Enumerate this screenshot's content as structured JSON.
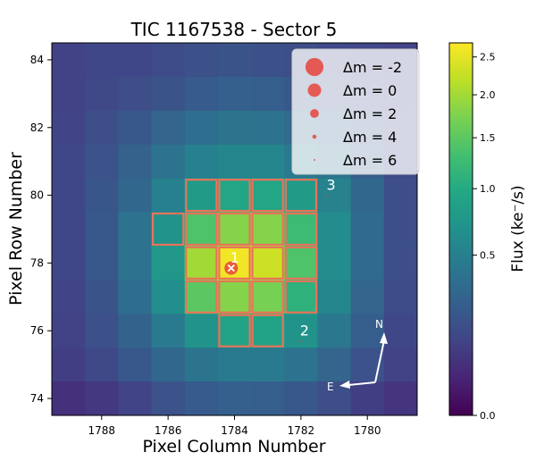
{
  "chart_data": {
    "type": "heatmap",
    "title": "TIC 1167538 - Sector 5",
    "xlabel": "Pixel Column Number",
    "ylabel": "Pixel Row Number",
    "xlim": [
      1789.5,
      1778.5
    ],
    "ylim": [
      73.5,
      84.5
    ],
    "x_ticks": [
      1788,
      1786,
      1784,
      1782,
      1780
    ],
    "y_ticks": [
      74,
      76,
      78,
      80,
      82,
      84
    ],
    "pixel_columns": [
      1789,
      1788,
      1787,
      1786,
      1785,
      1784,
      1783,
      1782,
      1781,
      1780,
      1779
    ],
    "pixel_rows": [
      84,
      83,
      82,
      81,
      80,
      79,
      78,
      77,
      76,
      75,
      74
    ],
    "flux_grid": [
      [
        0.1,
        0.12,
        0.12,
        0.14,
        0.16,
        0.18,
        0.16,
        0.15,
        0.13,
        0.12,
        0.11
      ],
      [
        0.1,
        0.13,
        0.15,
        0.18,
        0.22,
        0.25,
        0.24,
        0.2,
        0.17,
        0.14,
        0.12
      ],
      [
        0.11,
        0.15,
        0.2,
        0.28,
        0.35,
        0.4,
        0.38,
        0.32,
        0.25,
        0.18,
        0.13
      ],
      [
        0.12,
        0.17,
        0.26,
        0.38,
        0.5,
        0.55,
        0.55,
        0.45,
        0.4,
        0.24,
        0.14
      ],
      [
        0.12,
        0.19,
        0.3,
        0.5,
        0.8,
        0.95,
        0.95,
        0.8,
        0.52,
        0.3,
        0.15
      ],
      [
        0.12,
        0.2,
        0.38,
        0.7,
        1.4,
        1.8,
        1.8,
        1.25,
        0.62,
        0.32,
        0.15
      ],
      [
        0.12,
        0.2,
        0.38,
        0.75,
        2.0,
        2.6,
        2.3,
        1.4,
        0.62,
        0.32,
        0.15
      ],
      [
        0.11,
        0.18,
        0.34,
        0.65,
        1.5,
        1.8,
        1.7,
        1.1,
        0.55,
        0.28,
        0.14
      ],
      [
        0.1,
        0.16,
        0.27,
        0.45,
        0.7,
        0.9,
        0.9,
        0.7,
        0.42,
        0.24,
        0.12
      ],
      [
        0.09,
        0.13,
        0.2,
        0.3,
        0.4,
        0.45,
        0.45,
        0.38,
        0.28,
        0.17,
        0.1
      ],
      [
        0.05,
        0.07,
        0.11,
        0.17,
        0.22,
        0.25,
        0.24,
        0.2,
        0.15,
        0.09,
        0.06
      ]
    ],
    "aperture_pixels": [
      [
        1785,
        80
      ],
      [
        1784,
        80
      ],
      [
        1783,
        80
      ],
      [
        1782,
        80
      ],
      [
        1786,
        79
      ],
      [
        1785,
        79
      ],
      [
        1784,
        79
      ],
      [
        1783,
        79
      ],
      [
        1782,
        79
      ],
      [
        1785,
        78
      ],
      [
        1784,
        78
      ],
      [
        1783,
        78
      ],
      [
        1782,
        78
      ],
      [
        1785,
        77
      ],
      [
        1784,
        77
      ],
      [
        1783,
        77
      ],
      [
        1782,
        77
      ],
      [
        1784,
        76
      ],
      [
        1783,
        76
      ]
    ],
    "stars": [
      {
        "label": "1",
        "x": 1784.1,
        "y": 77.85,
        "delta_m": 0,
        "target": true
      },
      {
        "label": "2",
        "x": 1782.0,
        "y": 75.7,
        "delta_m": 5
      },
      {
        "label": "3",
        "x": 1781.2,
        "y": 80.0,
        "delta_m": 5
      }
    ],
    "legend": {
      "placement": "top-right",
      "entries": [
        {
          "label": "Δm =  -2",
          "delta_m": -2
        },
        {
          "label": "Δm =  0",
          "delta_m": 0
        },
        {
          "label": "Δm =  2",
          "delta_m": 2
        },
        {
          "label": "Δm =  4",
          "delta_m": 4
        },
        {
          "label": "Δm =  6",
          "delta_m": 6
        }
      ]
    },
    "colorbar": {
      "label": "Flux  (ke⁻/s)",
      "range": [
        0.0,
        2.7
      ],
      "ticks": [
        {
          "value": 0.0,
          "label": "0.0"
        },
        {
          "value": 0.5,
          "label": "0.5"
        },
        {
          "value": 1.0,
          "label": "1.0"
        },
        {
          "value": 1.5,
          "label": "1.5"
        },
        {
          "value": 2.0,
          "label": "2.0"
        },
        {
          "value": 2.5,
          "label": "2.5"
        }
      ]
    },
    "compass": {
      "north_label": "N",
      "east_label": "E"
    },
    "colors": {
      "aperture_outline": "#e8735a",
      "star_marker": "#e8433c",
      "star_label": "#ffffff",
      "target_cross": "#ffffff",
      "colormap": "viridis"
    }
  }
}
